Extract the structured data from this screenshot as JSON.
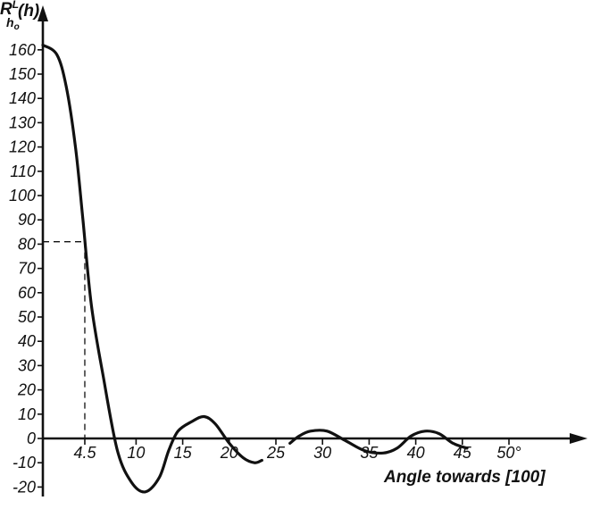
{
  "chart_data": {
    "type": "line",
    "ylabel": "R^L_{h_o}(h)",
    "ylabel_main": "R",
    "ylabel_sup": "L",
    "ylabel_sub": "h",
    "ylabel_subsub": "o",
    "ylabel_tail": "(h)",
    "xlabel": "Angle towards [100]",
    "xlim": [
      0,
      54
    ],
    "ylim": [
      -22,
      165
    ],
    "y_ticks": [
      160,
      150,
      140,
      130,
      120,
      110,
      100,
      90,
      80,
      70,
      60,
      50,
      40,
      30,
      20,
      10,
      0,
      -10,
      -20
    ],
    "y_tick_labels": [
      "160",
      "150",
      "140",
      "130",
      "120",
      "110",
      "100",
      "90",
      "80",
      "70",
      "60",
      "50",
      "40",
      "30",
      "20",
      "10",
      "0",
      "-10",
      "-20"
    ],
    "x_ticks": [
      4.5,
      10,
      15,
      20,
      25,
      30,
      35,
      40,
      45,
      50
    ],
    "x_tick_labels": [
      "4.5",
      "10",
      "15",
      "20",
      "25",
      "30",
      "35",
      "40",
      "45",
      "50°"
    ],
    "grid": false,
    "guide_lines": [
      {
        "from": [
          0,
          81
        ],
        "to": [
          4.5,
          81
        ]
      },
      {
        "from": [
          4.5,
          81
        ],
        "to": [
          4.5,
          0
        ]
      }
    ],
    "series": [
      {
        "segments": [
          {
            "x": [
              0,
              1.5,
              2.5,
              3.5,
              4.3,
              5.2,
              6.5,
              8,
              9.5,
              11,
              12.5,
              13.5,
              14.5,
              16,
              17.3,
              18.5,
              20,
              21.5,
              22.7,
              23.5
            ],
            "y": [
              162,
              158,
              145,
              120,
              90,
              55,
              25,
              -5,
              -18,
              -22,
              -16,
              -5,
              3,
              7,
              9,
              6,
              -2,
              -8,
              -10,
              -9
            ]
          },
          {
            "x": [
              26.5,
              27.5,
              28.7,
              30.5,
              32.5,
              34.5,
              36.5,
              38,
              39.5,
              41,
              42.5,
              44,
              45.5
            ],
            "y": [
              -2,
              1,
              3,
              3,
              -1,
              -5,
              -6,
              -4,
              1,
              3,
              2,
              -2,
              -4
            ]
          }
        ]
      }
    ]
  }
}
